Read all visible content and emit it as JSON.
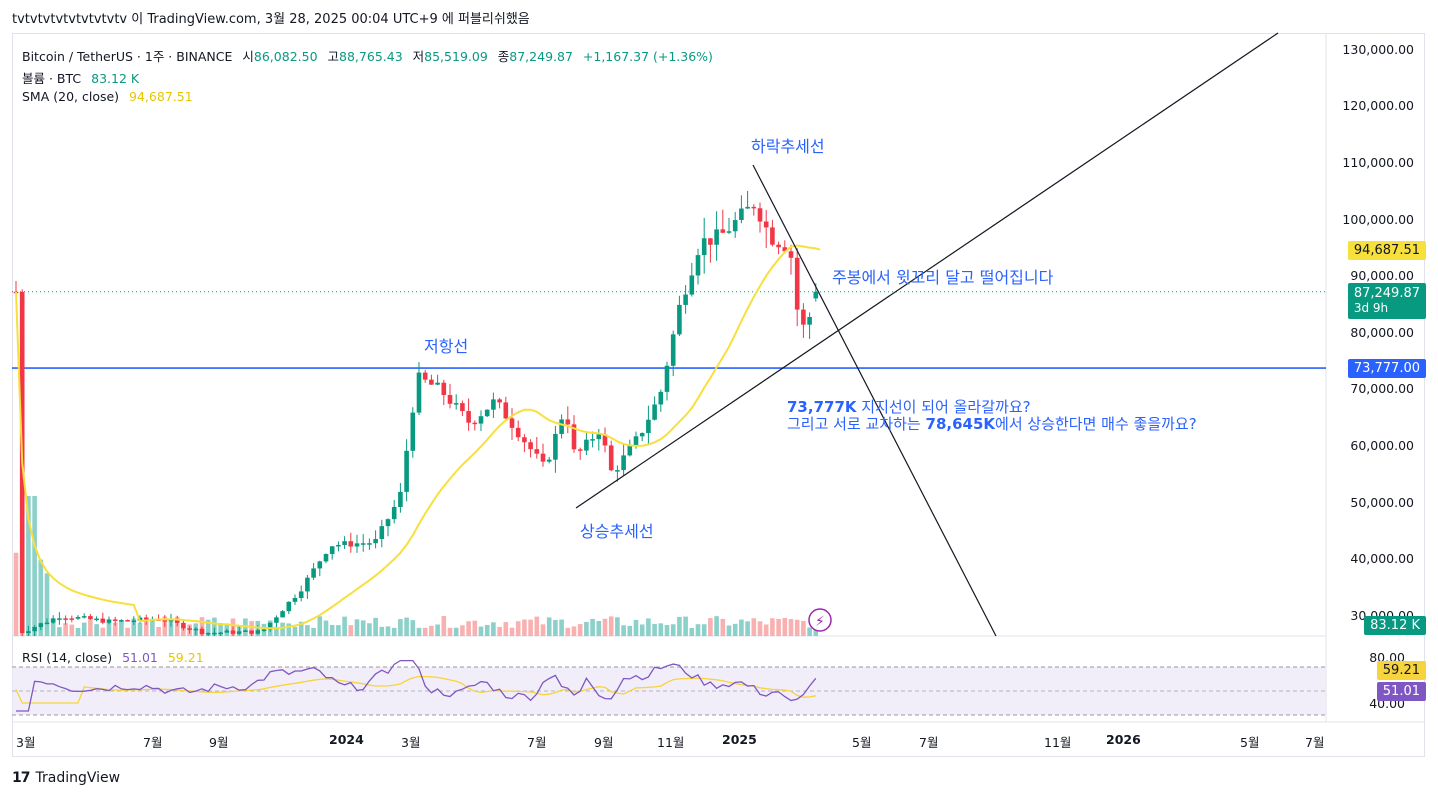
{
  "header": {
    "publish_line": "tvtvtvtvtvtvtvtvtv 이 TradingView.com, 3월 28, 2025 00:04 UTC+9 에 퍼블리쉬했음"
  },
  "legend": {
    "symbol": "Bitcoin / TetherUS · 1주 · BINANCE",
    "open_label": "시",
    "open": "86,082.50",
    "high_label": "고",
    "high": "88,765.43",
    "low_label": "저",
    "low": "85,519.09",
    "close_label": "종",
    "close": "87,249.87",
    "change": "+1,167.37 (+1.36%)",
    "volume_label": "볼륨 · BTC",
    "volume_value": "83.12 K",
    "sma_label": "SMA (20, close)",
    "sma_value": "94,687.51",
    "rsi_label": "RSI (14, close)",
    "rsi_value": "51.01",
    "rsi_ma_value": "59.21"
  },
  "annotations": {
    "downtrend": "하락추세선",
    "resistance": "저항선",
    "uptrend": "상승추세선",
    "wick_note": "주봉에서 윗꼬리 달고 떨어집니다",
    "support_q1_bold": "73,777K",
    "support_q1_rest": " 지지선이 되어 올라갈까요?",
    "support_q2_pre": "그리고 서로 교차하는 ",
    "support_q2_bold": "78,645K",
    "support_q2_rest": "에서 상승한다면 매수 좋을까요?"
  },
  "price_axis": {
    "ticks": [
      "130,000.00",
      "120,000.00",
      "110,000.00",
      "100,000.00",
      "90,000.00",
      "80,000.00",
      "70,000.00",
      "60,000.00",
      "50,000.00",
      "40,000.00",
      "30,000.00"
    ],
    "sma_badge": "94,687.51",
    "last_badge": "87,249.87",
    "countdown": "3d 9h",
    "line_badge": "73,777.00",
    "volume_badge": "83.12 K"
  },
  "rsi_axis": {
    "ticks": [
      "80.00",
      "40.00"
    ],
    "ma_badge": "59.21",
    "rsi_badge": "51.01"
  },
  "time_axis": [
    {
      "label": "3월",
      "bold": false
    },
    {
      "label": "7월",
      "bold": false
    },
    {
      "label": "9월",
      "bold": false
    },
    {
      "label": "2024",
      "bold": true
    },
    {
      "label": "3월",
      "bold": false
    },
    {
      "label": "7월",
      "bold": false
    },
    {
      "label": "9월",
      "bold": false
    },
    {
      "label": "11월",
      "bold": false
    },
    {
      "label": "2025",
      "bold": true
    },
    {
      "label": "5월",
      "bold": false
    },
    {
      "label": "7월",
      "bold": false
    },
    {
      "label": "11월",
      "bold": false
    },
    {
      "label": "2026",
      "bold": true
    },
    {
      "label": "5월",
      "bold": false
    },
    {
      "label": "7월",
      "bold": false
    }
  ],
  "footer": {
    "brand": "TradingView"
  },
  "colors": {
    "up": "#089981",
    "down": "#f23645",
    "sma": "#f7e03c",
    "blue": "#2962ff",
    "rsi_line": "#7e57c2",
    "rsi_ma": "#f7d33c"
  },
  "chart_data": {
    "type": "candlestick",
    "interval": "1W",
    "y_scale": {
      "min": 28000,
      "max": 135000
    },
    "horizontal_line": 73777,
    "sma20_last": 94687.51,
    "last_close": 87249.87,
    "candles_approx": [
      {
        "date": "2023-10",
        "open": 27000,
        "high": 28500,
        "low": 26800,
        "close": 28000
      },
      {
        "date": "2023-12",
        "open": 37000,
        "high": 44000,
        "low": 36000,
        "close": 42000
      },
      {
        "date": "2024-01",
        "open": 42000,
        "high": 49000,
        "low": 38500,
        "close": 43000
      },
      {
        "date": "2024-02",
        "open": 43000,
        "high": 52000,
        "low": 42000,
        "close": 51000
      },
      {
        "date": "2024-03",
        "open": 51000,
        "high": 73777,
        "low": 60000,
        "close": 70000
      },
      {
        "date": "2024-06",
        "open": 67000,
        "high": 71000,
        "low": 60000,
        "close": 62000
      },
      {
        "date": "2024-08",
        "open": 65000,
        "high": 66000,
        "low": 49000,
        "close": 57000
      },
      {
        "date": "2024-10",
        "open": 60000,
        "high": 69000,
        "low": 59000,
        "close": 68000
      },
      {
        "date": "2024-11",
        "open": 69000,
        "high": 99000,
        "low": 66000,
        "close": 96000
      },
      {
        "date": "2025-01",
        "open": 94000,
        "high": 109000,
        "low": 89000,
        "close": 102000
      },
      {
        "date": "2025-02",
        "open": 97000,
        "high": 99000,
        "low": 78000,
        "close": 84000
      },
      {
        "date": "2025-03",
        "open": 86082.5,
        "high": 88765.43,
        "low": 85519.09,
        "close": 87249.87
      }
    ],
    "volume_last": "83.12 K",
    "rsi_last": 51.01,
    "rsi_ma_last": 59.21
  }
}
